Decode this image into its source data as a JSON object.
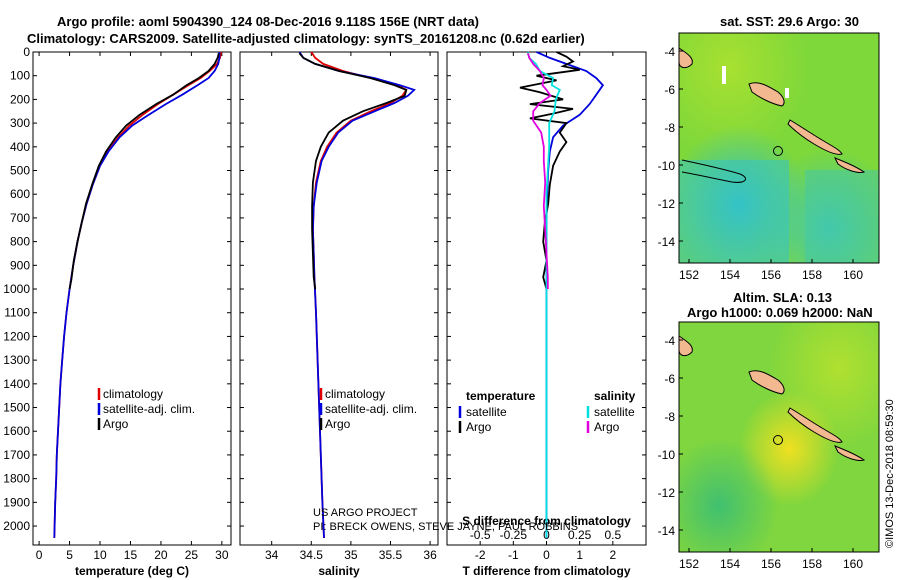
{
  "header": {
    "title_line1": "Argo profile: aoml 5904390_124 08-Dec-2016 9.118S 156E (NRT data)",
    "title_line2": "Climatology: CARS2009. Satellite-adjusted climatology: synTS_20161208.nc (0.62d earlier)"
  },
  "colors": {
    "climatology": "#e00000",
    "satellite": "#0000dd",
    "argo": "#000000",
    "salinity_sat": "#00e0e0",
    "salinity_argo": "#e000e0"
  },
  "credits": {
    "line1": "US ARGO PROJECT",
    "line2": "PI: BRECK OWENS, STEVE JAYNE, PAUL ROBBINS"
  },
  "timestamp": "©IMOS 13-Dec-2018 08:59:30",
  "chart_data": [
    {
      "type": "line",
      "name": "temperature",
      "xlabel": "temperature (deg C)",
      "ylabel": "",
      "xlim": [
        -1,
        31.5
      ],
      "ylim": [
        2080,
        0
      ],
      "xticks": [
        0,
        5,
        10,
        15,
        20,
        25,
        30
      ],
      "yticks": [
        0,
        100,
        200,
        300,
        400,
        500,
        600,
        700,
        800,
        900,
        1000,
        1100,
        1200,
        1300,
        1400,
        1500,
        1600,
        1700,
        1800,
        1900,
        2000
      ],
      "legend": [
        "climatology",
        "satellite-adj. clim.",
        "Argo"
      ],
      "series": [
        {
          "name": "climatology",
          "color": "#e00000",
          "points": [
            [
              29.9,
              0
            ],
            [
              29.7,
              25
            ],
            [
              29.2,
              50
            ],
            [
              28.0,
              80
            ],
            [
              26.5,
              110
            ],
            [
              24.5,
              140
            ],
            [
              22.0,
              180
            ],
            [
              19.5,
              220
            ],
            [
              17.0,
              265
            ],
            [
              14.8,
              310
            ],
            [
              13.0,
              360
            ],
            [
              11.3,
              420
            ],
            [
              10.0,
              480
            ],
            [
              8.8,
              560
            ],
            [
              7.8,
              640
            ],
            [
              7.0,
              720
            ],
            [
              6.3,
              800
            ],
            [
              5.6,
              900
            ],
            [
              5.0,
              1000
            ],
            [
              4.5,
              1100
            ],
            [
              4.1,
              1200
            ],
            [
              3.8,
              1300
            ],
            [
              3.5,
              1400
            ],
            [
              3.3,
              1500
            ],
            [
              3.1,
              1600
            ],
            [
              2.9,
              1700
            ],
            [
              2.8,
              1800
            ],
            [
              2.65,
              1900
            ],
            [
              2.55,
              2000
            ],
            [
              2.5,
              2050
            ]
          ]
        },
        {
          "name": "satellite-adj. clim.",
          "color": "#0000dd",
          "points": [
            [
              29.6,
              0
            ],
            [
              29.6,
              25
            ],
            [
              29.4,
              50
            ],
            [
              28.8,
              80
            ],
            [
              27.8,
              110
            ],
            [
              26.0,
              140
            ],
            [
              23.5,
              180
            ],
            [
              20.8,
              220
            ],
            [
              18.0,
              265
            ],
            [
              15.3,
              310
            ],
            [
              13.2,
              360
            ],
            [
              11.4,
              420
            ],
            [
              10.0,
              480
            ],
            [
              8.8,
              560
            ],
            [
              7.8,
              640
            ],
            [
              7.0,
              720
            ],
            [
              6.3,
              800
            ],
            [
              5.6,
              900
            ],
            [
              5.0,
              1000
            ],
            [
              4.5,
              1100
            ],
            [
              4.1,
              1200
            ],
            [
              3.8,
              1300
            ],
            [
              3.5,
              1400
            ],
            [
              3.3,
              1500
            ],
            [
              3.1,
              1600
            ],
            [
              2.9,
              1700
            ],
            [
              2.8,
              1800
            ],
            [
              2.65,
              1900
            ],
            [
              2.55,
              2000
            ],
            [
              2.5,
              2050
            ]
          ]
        },
        {
          "name": "Argo",
          "color": "#000000",
          "points": [
            [
              29.5,
              5
            ],
            [
              29.3,
              25
            ],
            [
              28.8,
              50
            ],
            [
              27.8,
              80
            ],
            [
              26.2,
              110
            ],
            [
              24.2,
              140
            ],
            [
              22.0,
              180
            ],
            [
              19.2,
              220
            ],
            [
              16.5,
              265
            ],
            [
              14.3,
              310
            ],
            [
              12.6,
              360
            ],
            [
              11.0,
              420
            ],
            [
              9.8,
              480
            ],
            [
              8.7,
              560
            ],
            [
              7.7,
              640
            ],
            [
              7.0,
              720
            ],
            [
              6.3,
              800
            ],
            [
              5.7,
              880
            ],
            [
              5.3,
              960
            ],
            [
              5.0,
              1000
            ]
          ]
        }
      ]
    },
    {
      "type": "line",
      "name": "salinity",
      "xlabel": "salinity",
      "ylabel": "",
      "xlim": [
        33.6,
        36.1
      ],
      "ylim": [
        2080,
        0
      ],
      "xticks": [
        34,
        34.5,
        35,
        35.5,
        36
      ],
      "yticks": [],
      "legend": [
        "climatology",
        "satellite-adj. clim.",
        "Argo"
      ],
      "series": [
        {
          "name": "climatology",
          "color": "#e00000",
          "points": [
            [
              34.5,
              0
            ],
            [
              34.55,
              25
            ],
            [
              34.65,
              50
            ],
            [
              34.9,
              80
            ],
            [
              35.25,
              110
            ],
            [
              35.58,
              140
            ],
            [
              35.7,
              160
            ],
            [
              35.65,
              185
            ],
            [
              35.5,
              215
            ],
            [
              35.25,
              250
            ],
            [
              35.0,
              290
            ],
            [
              34.82,
              340
            ],
            [
              34.7,
              400
            ],
            [
              34.62,
              460
            ],
            [
              34.56,
              550
            ],
            [
              34.53,
              650
            ],
            [
              34.52,
              750
            ],
            [
              34.53,
              850
            ],
            [
              34.54,
              950
            ],
            [
              34.56,
              1100
            ],
            [
              34.58,
              1300
            ],
            [
              34.6,
              1500
            ],
            [
              34.62,
              1700
            ],
            [
              34.64,
              1900
            ],
            [
              34.66,
              2050
            ]
          ]
        },
        {
          "name": "satellite-adj. clim.",
          "color": "#0000dd",
          "points": [
            [
              34.35,
              0
            ],
            [
              34.4,
              25
            ],
            [
              34.55,
              50
            ],
            [
              34.85,
              80
            ],
            [
              35.3,
              110
            ],
            [
              35.62,
              140
            ],
            [
              35.8,
              160
            ],
            [
              35.72,
              185
            ],
            [
              35.55,
              215
            ],
            [
              35.3,
              250
            ],
            [
              35.02,
              290
            ],
            [
              34.84,
              340
            ],
            [
              34.72,
              400
            ],
            [
              34.63,
              460
            ],
            [
              34.57,
              550
            ],
            [
              34.53,
              650
            ],
            [
              34.52,
              750
            ],
            [
              34.53,
              850
            ],
            [
              34.54,
              950
            ],
            [
              34.56,
              1100
            ],
            [
              34.58,
              1300
            ],
            [
              34.6,
              1500
            ],
            [
              34.62,
              1700
            ],
            [
              34.64,
              1900
            ],
            [
              34.66,
              2050
            ]
          ]
        },
        {
          "name": "Argo",
          "color": "#000000",
          "points": [
            [
              34.35,
              5
            ],
            [
              34.4,
              25
            ],
            [
              34.55,
              50
            ],
            [
              34.85,
              80
            ],
            [
              35.25,
              110
            ],
            [
              35.55,
              140
            ],
            [
              35.7,
              160
            ],
            [
              35.68,
              185
            ],
            [
              35.45,
              215
            ],
            [
              35.15,
              250
            ],
            [
              34.9,
              290
            ],
            [
              34.72,
              340
            ],
            [
              34.62,
              400
            ],
            [
              34.56,
              460
            ],
            [
              34.52,
              550
            ],
            [
              34.51,
              650
            ],
            [
              34.51,
              750
            ],
            [
              34.52,
              850
            ],
            [
              34.53,
              950
            ],
            [
              34.55,
              1000
            ]
          ]
        }
      ]
    },
    {
      "type": "line",
      "name": "differences",
      "xlabel": "T difference from climatology",
      "xlabel_top": "S difference from climatology",
      "ylabel": "",
      "xlim": [
        -3,
        3
      ],
      "ylim": [
        2080,
        0
      ],
      "xticks": [
        -2,
        -1,
        0,
        1,
        2
      ],
      "xticks_s_values": [
        -0.5,
        -0.25,
        0,
        0.25,
        0.5
      ],
      "xticks_s": [
        "-0.5",
        "-0.25",
        "0",
        "0.25",
        "0.5"
      ],
      "yticks": [],
      "legend_left_title": "temperature",
      "legend_right_title": "salinity",
      "legend": [
        "satellite",
        "Argo",
        "satellite",
        "Argo"
      ],
      "series": [
        {
          "name": "T satellite",
          "color": "#0000dd",
          "points": [
            [
              -0.3,
              0
            ],
            [
              0.1,
              25
            ],
            [
              0.6,
              50
            ],
            [
              1.2,
              80
            ],
            [
              1.5,
              110
            ],
            [
              1.7,
              140
            ],
            [
              1.5,
              180
            ],
            [
              1.3,
              220
            ],
            [
              1.0,
              265
            ],
            [
              0.5,
              310
            ],
            [
              0.2,
              360
            ],
            [
              0.1,
              420
            ],
            [
              0.05,
              500
            ],
            [
              0.02,
              600
            ],
            [
              0,
              700
            ],
            [
              0,
              2050
            ]
          ]
        },
        {
          "name": "T Argo",
          "color": "#000000",
          "points": [
            [
              0.3,
              0
            ],
            [
              0.6,
              20
            ],
            [
              0.8,
              40
            ],
            [
              0.5,
              60
            ],
            [
              1.0,
              75
            ],
            [
              -0.3,
              100
            ],
            [
              0.3,
              120
            ],
            [
              -0.8,
              150
            ],
            [
              -0.2,
              170
            ],
            [
              0.5,
              200
            ],
            [
              -0.5,
              220
            ],
            [
              0.8,
              240
            ],
            [
              0.2,
              260
            ],
            [
              -0.5,
              280
            ],
            [
              0.6,
              300
            ],
            [
              0.4,
              340
            ],
            [
              0.6,
              380
            ],
            [
              0.4,
              420
            ],
            [
              0.2,
              480
            ],
            [
              0.1,
              560
            ],
            [
              0.05,
              640
            ],
            [
              -0.05,
              720
            ],
            [
              -0.1,
              800
            ],
            [
              0,
              880
            ],
            [
              -0.1,
              950
            ],
            [
              0,
              1000
            ]
          ]
        },
        {
          "name": "S satellite",
          "color": "#00e0e0",
          "points": [
            [
              -0.14,
              0
            ],
            [
              -0.13,
              25
            ],
            [
              -0.08,
              50
            ],
            [
              -0.05,
              80
            ],
            [
              0.05,
              110
            ],
            [
              0.04,
              140
            ],
            [
              0.1,
              160
            ],
            [
              0.07,
              200
            ],
            [
              0.06,
              250
            ],
            [
              0.02,
              300
            ],
            [
              0.02,
              400
            ],
            [
              0.01,
              500
            ],
            [
              0,
              600
            ],
            [
              0,
              2050
            ]
          ]
        },
        {
          "name": "S Argo",
          "color": "#e000e0",
          "points": [
            [
              -0.14,
              5
            ],
            [
              -0.13,
              25
            ],
            [
              -0.1,
              50
            ],
            [
              -0.05,
              80
            ],
            [
              -0.02,
              110
            ],
            [
              -0.03,
              140
            ],
            [
              0,
              160
            ],
            [
              0.03,
              185
            ],
            [
              -0.05,
              215
            ],
            [
              -0.1,
              250
            ],
            [
              -0.1,
              290
            ],
            [
              -0.04,
              340
            ],
            [
              -0.02,
              400
            ],
            [
              -0.02,
              460
            ],
            [
              -0.01,
              550
            ],
            [
              -0.02,
              650
            ],
            [
              -0.01,
              750
            ],
            [
              0,
              850
            ],
            [
              0.01,
              950
            ],
            [
              0.01,
              1000
            ]
          ]
        }
      ]
    }
  ],
  "maps": [
    {
      "title": "sat. SST: 29.6 Argo: 30",
      "xticks": [
        "152",
        "154",
        "156",
        "158",
        "160"
      ],
      "yticks": [
        "-4",
        "-6",
        "-8",
        "-10",
        "-12",
        "-14"
      ]
    },
    {
      "title": "Altim. SLA: 0.13",
      "subtitle": "Argo h1000: 0.069 h2000: NaN",
      "xticks": [
        "152",
        "154",
        "156",
        "158",
        "160"
      ],
      "yticks": [
        "-4",
        "-6",
        "-8",
        "-10",
        "-12",
        "-14"
      ]
    }
  ]
}
